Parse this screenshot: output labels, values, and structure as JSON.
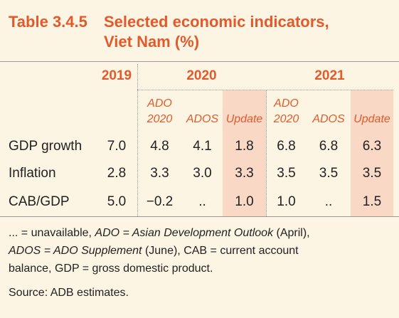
{
  "title": {
    "label": "Table 3.4.5",
    "lines": [
      "Selected economic indicators,",
      "Viet Nam (%)"
    ]
  },
  "table": {
    "years": [
      "2019",
      "2020",
      "2021"
    ],
    "subheaders": [
      [
        "ADO",
        "2020"
      ],
      [
        "ADOS"
      ],
      [
        "Update"
      ],
      [
        "ADO",
        "2020"
      ],
      [
        "ADOS"
      ],
      [
        "Update"
      ]
    ],
    "rows": [
      [
        "GDP growth",
        "7.0",
        "4.8",
        "4.1",
        "1.8",
        "6.8",
        "6.8",
        "6.3"
      ],
      [
        "Inflation",
        "2.8",
        "3.3",
        "3.0",
        "3.3",
        "3.5",
        "3.5",
        "3.5"
      ],
      [
        "CAB/GDP",
        "5.0",
        "−0.2",
        "..",
        "1.0",
        "1.0",
        "..",
        "1.5"
      ]
    ]
  },
  "notes": {
    "line1": [
      "... = unavailable, ",
      "ADO = Asian Development Outlook",
      " (April),"
    ],
    "line2": [
      "ADOS = ADO Supplement",
      " (June), CAB = current account"
    ],
    "line3": [
      "balance, GDP = gross domestic product."
    ],
    "source": "Source: ADB estimates."
  }
}
